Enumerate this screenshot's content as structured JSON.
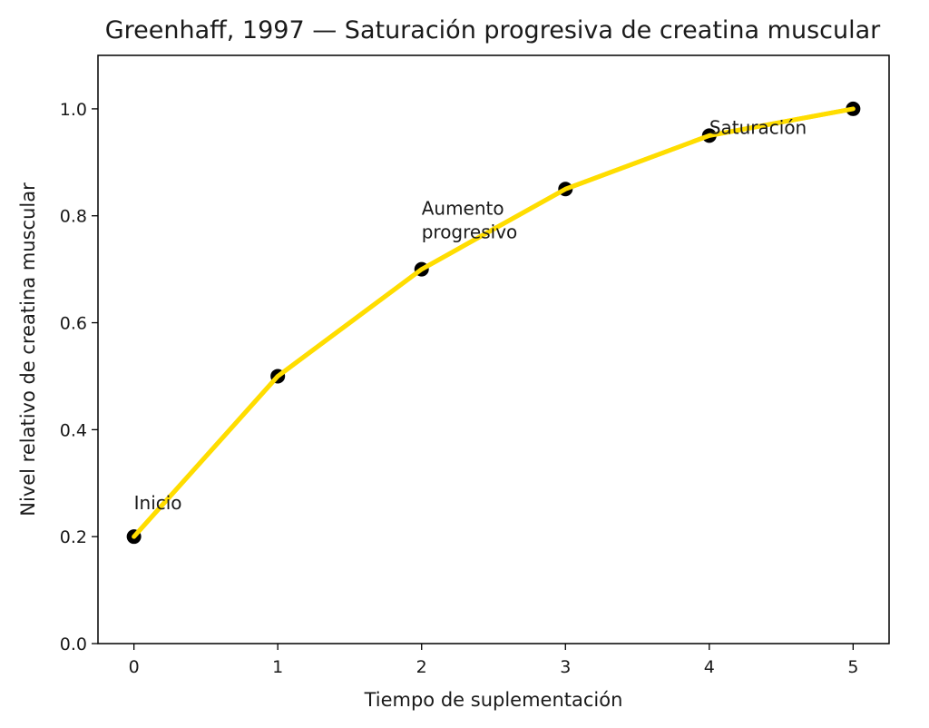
{
  "chart_data": {
    "type": "line",
    "title": "Greenhaff, 1997 — Saturación progresiva de creatina muscular",
    "xlabel": "Tiempo de suplementación",
    "ylabel": "Nivel relativo de creatina muscular",
    "x": [
      0,
      1,
      2,
      3,
      4,
      5
    ],
    "series": [
      {
        "values": [
          0.2,
          0.5,
          0.7,
          0.85,
          0.95,
          1.0
        ],
        "color": "#FFDD00",
        "marker": "circle",
        "marker_color": "#000000"
      }
    ],
    "xlim": [
      -0.25,
      5.25
    ],
    "ylim": [
      0.0,
      1.1
    ],
    "xticks": [
      "0",
      "1",
      "2",
      "3",
      "4",
      "5"
    ],
    "yticks": [
      "0.0",
      "0.2",
      "0.4",
      "0.6",
      "0.8",
      "1.0"
    ],
    "grid": false,
    "annotations": [
      {
        "text": "Inicio",
        "x": 0,
        "y": 0.2
      },
      {
        "text": "Aumento\nprogresivo",
        "x": 2,
        "y": 0.7
      },
      {
        "text": "Saturación",
        "x": 4,
        "y": 0.95
      }
    ]
  }
}
